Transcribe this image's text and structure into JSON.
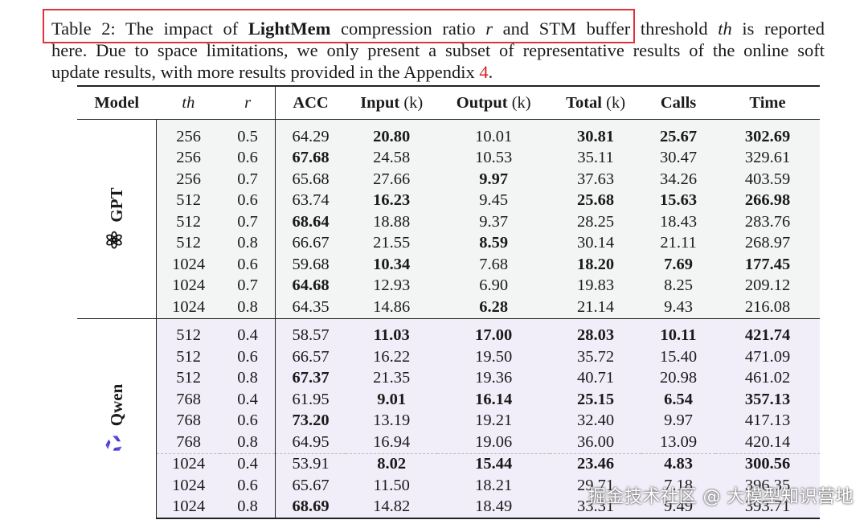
{
  "caption": {
    "table_label": "Table 2:",
    "text_1": " The impact of ",
    "method": "LightMem",
    "text_2": " compression ratio ",
    "var_r": "r",
    "text_3": " and STM buffer threshold ",
    "var_th": "th",
    "text_4": " is reported",
    "line2": "here. Due to space limitations, we only present a subset of representative results of the online soft",
    "line3_pre": "update results, with more results provided in the Appendix ",
    "appendix_ref": "4",
    "line3_post": "."
  },
  "table": {
    "headers": {
      "model": "Model",
      "th": "th",
      "r": "r",
      "acc": "ACC",
      "input": "Input",
      "output": "Output",
      "total": "Total",
      "calls": "Calls",
      "time": "Time",
      "k_unit": "(k)"
    },
    "groups": [
      {
        "model": "GPT",
        "icon": "openai-icon",
        "rows": [
          [
            "256",
            "0.5",
            "64.29",
            "20.80",
            "10.01",
            "30.81",
            "25.67",
            "302.69"
          ],
          [
            "256",
            "0.6",
            "67.68",
            "24.58",
            "10.53",
            "35.11",
            "30.47",
            "329.61"
          ],
          [
            "256",
            "0.7",
            "65.68",
            "27.66",
            "9.97",
            "37.63",
            "34.26",
            "403.59"
          ],
          [
            "512",
            "0.6",
            "63.74",
            "16.23",
            "9.45",
            "25.68",
            "15.63",
            "266.98"
          ],
          [
            "512",
            "0.7",
            "68.64",
            "18.88",
            "9.37",
            "28.25",
            "18.43",
            "283.76"
          ],
          [
            "512",
            "0.8",
            "66.67",
            "21.55",
            "8.59",
            "30.14",
            "21.11",
            "268.97"
          ],
          [
            "1024",
            "0.6",
            "59.68",
            "10.34",
            "7.68",
            "18.20",
            "7.69",
            "177.45"
          ],
          [
            "1024",
            "0.7",
            "64.68",
            "12.93",
            "6.90",
            "19.83",
            "8.25",
            "209.12"
          ],
          [
            "1024",
            "0.8",
            "64.35",
            "14.86",
            "6.28",
            "21.14",
            "9.43",
            "216.08"
          ]
        ]
      },
      {
        "model": "Qwen",
        "icon": "qwen-icon",
        "rows": [
          [
            "512",
            "0.4",
            "58.57",
            "11.03",
            "17.00",
            "28.03",
            "10.11",
            "421.74"
          ],
          [
            "512",
            "0.6",
            "66.57",
            "16.22",
            "19.50",
            "35.72",
            "15.40",
            "471.09"
          ],
          [
            "512",
            "0.8",
            "67.37",
            "21.35",
            "19.36",
            "40.71",
            "20.98",
            "461.02"
          ],
          [
            "768",
            "0.4",
            "61.95",
            "9.01",
            "16.14",
            "25.15",
            "6.54",
            "357.13"
          ],
          [
            "768",
            "0.6",
            "73.20",
            "13.19",
            "19.21",
            "32.40",
            "9.97",
            "417.13"
          ],
          [
            "768",
            "0.8",
            "64.95",
            "16.94",
            "19.06",
            "36.00",
            "13.09",
            "420.14"
          ],
          [
            "1024",
            "0.4",
            "53.91",
            "8.02",
            "15.44",
            "23.46",
            "4.83",
            "300.56"
          ],
          [
            "1024",
            "0.6",
            "65.67",
            "11.50",
            "18.21",
            "29.71",
            "7.18",
            "396.35"
          ],
          [
            "1024",
            "0.8",
            "68.69",
            "14.82",
            "18.49",
            "33.31",
            "9.49",
            "393.71"
          ]
        ]
      }
    ]
  },
  "watermark": "掘金技术社区 @ 大模型知识营地"
}
